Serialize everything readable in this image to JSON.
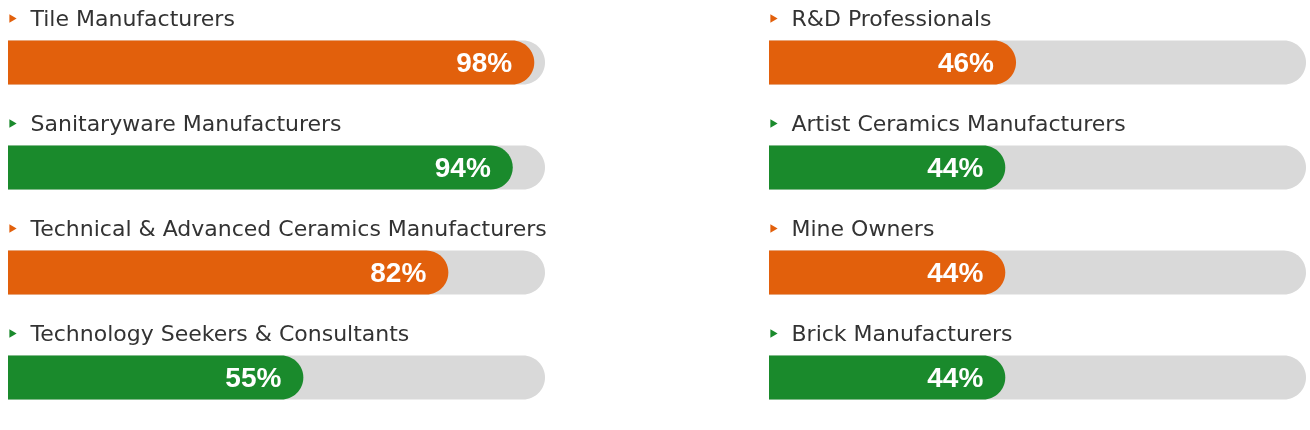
{
  "chart_data": [
    {
      "type": "bar",
      "orientation": "horizontal",
      "categories": [
        "Tile Manufacturers",
        "Sanitaryware Manufacturers",
        "Technical & Advanced Ceramics Manufacturers",
        "Technology Seekers & Consultants"
      ],
      "values": [
        98,
        94,
        82,
        55
      ],
      "value_labels": [
        "98%",
        "94%",
        "82%",
        "55%"
      ],
      "colors": [
        "#e2600c",
        "#1a8a2c",
        "#e2600c",
        "#1a8a2c"
      ],
      "xlim": [
        0,
        100
      ],
      "tick_labels": "y"
    },
    {
      "type": "bar",
      "orientation": "horizontal",
      "categories": [
        "R&D Professionals",
        "Artist Ceramics Manufacturers",
        "Mine Owners",
        "Brick Manufacturers"
      ],
      "values": [
        46,
        44,
        44,
        44
      ],
      "value_labels": [
        "46%",
        "44%",
        "44%",
        "44%"
      ],
      "colors": [
        "#e2600c",
        "#1a8a2c",
        "#e2600c",
        "#1a8a2c"
      ],
      "xlim": [
        0,
        100
      ],
      "tick_labels": "y"
    }
  ]
}
